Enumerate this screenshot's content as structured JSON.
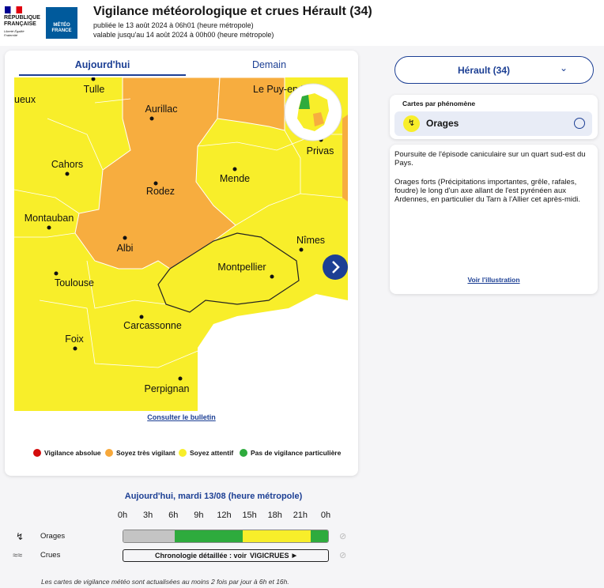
{
  "header": {
    "republic": "RÉPUBLIQUE FRANÇAISE",
    "motto": "Liberté Égalité Fraternité",
    "logo": "MÉTÉO FRANCE",
    "title": "Vigilance météorologique et crues Hérault (34)",
    "published": "publiée le 13 août 2024 à 06h01 (heure métropole)",
    "valid": "valable jusqu'au 14 août 2024 à 00h00 (heure métropole)"
  },
  "tabs": [
    "Aujourd'hui",
    "Demain"
  ],
  "map": {
    "cities": [
      "Tulle",
      "Aurillac",
      "Le Puy-en-Velay",
      "ueux",
      "Cahors",
      "Rodez",
      "Mende",
      "Privas",
      "Montauban",
      "Albi",
      "Nîmes",
      "Montpellier",
      "Toulouse",
      "Carcassonne",
      "Foix",
      "Perpignan"
    ],
    "bulletin_link": "Consulter le bulletin"
  },
  "legend": [
    {
      "label": "Vigilance absolue",
      "color": "#d40c0c"
    },
    {
      "label": "Soyez très vigilant",
      "color": "#f7a83a"
    },
    {
      "label": "Soyez attentif",
      "color": "#f8ee2a"
    },
    {
      "label": "Pas de vigilance particulière",
      "color": "#2eab3d"
    }
  ],
  "timeline": {
    "title": "Aujourd'hui, mardi 13/08 (heure métropole)",
    "hours": [
      "0h",
      "3h",
      "6h",
      "9h",
      "12h",
      "15h",
      "18h",
      "21h",
      "0h"
    ],
    "xlim": [
      0,
      24
    ],
    "rows": [
      {
        "label": "Orages",
        "segments": [
          {
            "start": 0,
            "end": 6,
            "color": "#c4c4c4"
          },
          {
            "start": 6,
            "end": 14,
            "color": "#2eab3d"
          },
          {
            "start": 14,
            "end": 22,
            "color": "#f8ee2a"
          },
          {
            "start": 22,
            "end": 24,
            "color": "#2eab3d"
          }
        ]
      },
      {
        "label": "Crues",
        "text": "Chronologie détaillée : voir",
        "link": "VIGICRUES"
      }
    ],
    "note": "Les cartes de vigilance météo sont actualisées au moins 2 fois par jour à 6h et 16h."
  },
  "sidebar": {
    "department": "Hérault (34)",
    "phenomena_title": "Cartes par phénomène",
    "phenomenon": "Orages",
    "description": [
      "Poursuite de l'épisode caniculaire sur un quart sud-est du Pays.",
      "Orages forts (Précipitations importantes, grêle, rafales, foudre) le long d'un axe allant de l'est pyrénéen aux Ardennes, en particulier du Tarn à l'Allier cet après-midi."
    ],
    "illustration_link": "Voir l'illustration"
  }
}
